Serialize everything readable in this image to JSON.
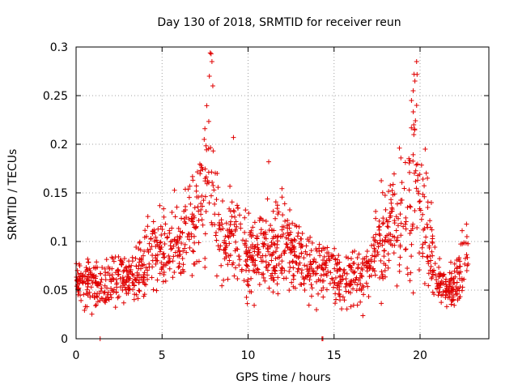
{
  "chart_data": {
    "type": "scatter",
    "title": "Day 130 of 2018, SRMTID for receiver reun",
    "xlabel": "GPS time / hours",
    "ylabel": "SRMTID / TECUs",
    "xlim": [
      0,
      24
    ],
    "ylim": [
      0,
      0.3
    ],
    "xticks": [
      0,
      5,
      10,
      15,
      20
    ],
    "xtick_labels": [
      "0",
      "5",
      "10",
      "15",
      "20"
    ],
    "yticks": [
      0,
      0.05,
      0.1,
      0.15,
      0.2,
      0.25,
      0.3
    ],
    "ytick_labels": [
      "0",
      "0.05",
      "0.1",
      "0.15",
      "0.2",
      "0.25",
      "0.3"
    ],
    "grid": true,
    "marker": "+",
    "color": "#e00000",
    "series": [
      {
        "name": "SRMTID",
        "trend": [
          [
            0.0,
            0.063,
            0.012
          ],
          [
            0.5,
            0.058,
            0.012
          ],
          [
            1.0,
            0.055,
            0.012
          ],
          [
            1.5,
            0.052,
            0.012
          ],
          [
            2.0,
            0.06,
            0.013
          ],
          [
            2.5,
            0.065,
            0.013
          ],
          [
            3.0,
            0.06,
            0.012
          ],
          [
            3.5,
            0.062,
            0.012
          ],
          [
            4.0,
            0.085,
            0.018
          ],
          [
            4.5,
            0.09,
            0.02
          ],
          [
            5.0,
            0.09,
            0.02
          ],
          [
            5.5,
            0.092,
            0.02
          ],
          [
            6.0,
            0.098,
            0.02
          ],
          [
            6.5,
            0.105,
            0.022
          ],
          [
            7.0,
            0.125,
            0.03
          ],
          [
            7.5,
            0.15,
            0.04
          ],
          [
            7.8,
            0.2,
            0.06
          ],
          [
            8.0,
            0.14,
            0.04
          ],
          [
            8.5,
            0.105,
            0.02
          ],
          [
            9.0,
            0.11,
            0.025
          ],
          [
            9.5,
            0.095,
            0.022
          ],
          [
            10.0,
            0.082,
            0.02
          ],
          [
            10.5,
            0.085,
            0.02
          ],
          [
            11.0,
            0.095,
            0.022
          ],
          [
            11.5,
            0.085,
            0.02
          ],
          [
            12.0,
            0.1,
            0.025
          ],
          [
            12.5,
            0.09,
            0.02
          ],
          [
            13.0,
            0.08,
            0.018
          ],
          [
            13.5,
            0.07,
            0.015
          ],
          [
            14.0,
            0.075,
            0.015
          ],
          [
            14.5,
            0.075,
            0.015
          ],
          [
            15.0,
            0.068,
            0.014
          ],
          [
            15.5,
            0.06,
            0.013
          ],
          [
            16.0,
            0.062,
            0.013
          ],
          [
            16.5,
            0.062,
            0.013
          ],
          [
            17.0,
            0.075,
            0.015
          ],
          [
            17.5,
            0.095,
            0.02
          ],
          [
            18.0,
            0.12,
            0.03
          ],
          [
            18.5,
            0.12,
            0.03
          ],
          [
            19.0,
            0.13,
            0.035
          ],
          [
            19.5,
            0.15,
            0.045
          ],
          [
            19.8,
            0.18,
            0.05
          ],
          [
            20.0,
            0.12,
            0.03
          ],
          [
            20.5,
            0.105,
            0.03
          ],
          [
            21.0,
            0.06,
            0.01
          ],
          [
            21.5,
            0.055,
            0.01
          ],
          [
            22.0,
            0.055,
            0.012
          ],
          [
            22.5,
            0.075,
            0.015
          ],
          [
            22.8,
            0.085,
            0.015
          ]
        ],
        "points_per_hour": 65,
        "extra_points": [
          [
            1.4,
            0.0
          ],
          [
            14.3,
            0.0
          ],
          [
            14.35,
            0.0
          ],
          [
            7.8,
            0.294
          ],
          [
            7.85,
            0.293
          ],
          [
            7.9,
            0.285
          ],
          [
            7.75,
            0.27
          ],
          [
            7.95,
            0.26
          ],
          [
            19.65,
            0.272
          ],
          [
            19.7,
            0.265
          ],
          [
            19.6,
            0.255
          ],
          [
            19.5,
            0.245
          ],
          [
            19.8,
            0.24
          ],
          [
            9.15,
            0.207
          ],
          [
            7.45,
            0.205
          ],
          [
            20.3,
            0.195
          ],
          [
            11.2,
            0.182
          ],
          [
            18.8,
            0.196
          ]
        ],
        "seed": 130
      }
    ]
  }
}
